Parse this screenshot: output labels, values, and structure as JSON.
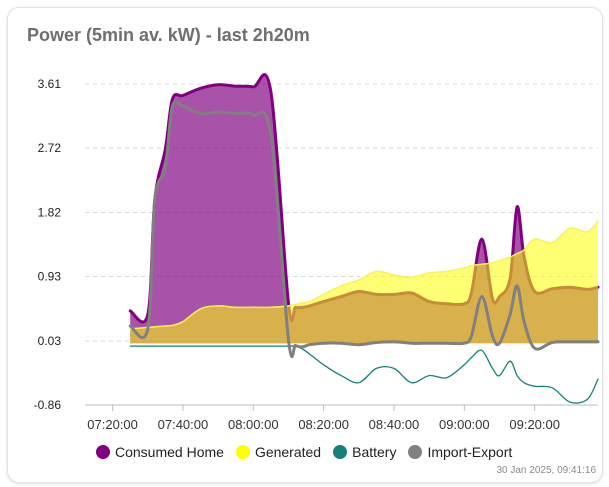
{
  "card": {
    "title": "Power (5min av. kW) - last 2h20m",
    "updated": "30 Jan 2025, 09:41:16"
  },
  "chart_data": {
    "type": "area",
    "title": "Power (5min av. kW) - last 2h20m",
    "xlabel": "",
    "ylabel": "",
    "ylim": [
      -0.86,
      3.61
    ],
    "y_ticks": [
      "3.61",
      "2.72",
      "1.82",
      "0.93",
      "0.03",
      "-0.86"
    ],
    "x_ticks": [
      "07:20:00",
      "07:40:00",
      "08:00:00",
      "08:20:00",
      "08:40:00",
      "09:00:00",
      "09:20:00"
    ],
    "grid": true,
    "legend_position": "bottom",
    "x": [
      "07:25",
      "07:30",
      "07:32",
      "07:35",
      "07:37",
      "07:40",
      "07:45",
      "07:50",
      "07:55",
      "08:00",
      "08:05",
      "08:10",
      "08:12",
      "08:14",
      "08:16",
      "08:20",
      "08:25",
      "08:30",
      "08:35",
      "08:40",
      "08:45",
      "08:50",
      "08:55",
      "09:00",
      "09:02",
      "09:05",
      "09:08",
      "09:10",
      "09:13",
      "09:15",
      "09:17",
      "09:20",
      "09:25",
      "09:30",
      "09:35",
      "09:38"
    ],
    "series": [
      {
        "name": "Consumed Home",
        "color": "#800080",
        "values": [
          0.45,
          0.4,
          2.0,
          2.7,
          3.4,
          3.45,
          3.55,
          3.6,
          3.58,
          3.57,
          3.5,
          0.55,
          0.5,
          0.5,
          0.52,
          0.58,
          0.65,
          0.72,
          0.68,
          0.68,
          0.7,
          0.58,
          0.55,
          0.55,
          0.7,
          1.45,
          0.62,
          0.65,
          0.9,
          1.9,
          1.2,
          0.72,
          0.76,
          0.78,
          0.75,
          0.78
        ]
      },
      {
        "name": "Generated",
        "color": "#ffff00",
        "values": [
          0.2,
          0.22,
          0.23,
          0.24,
          0.25,
          0.3,
          0.48,
          0.52,
          0.5,
          0.5,
          0.5,
          0.52,
          0.54,
          0.56,
          0.58,
          0.68,
          0.8,
          0.88,
          1.0,
          0.95,
          0.92,
          0.98,
          1.0,
          1.05,
          1.08,
          1.1,
          1.12,
          1.15,
          1.2,
          1.25,
          1.3,
          1.45,
          1.4,
          1.6,
          1.55,
          1.7
        ]
      },
      {
        "name": "Battery",
        "color": "#168178",
        "values": [
          -0.04,
          -0.04,
          -0.04,
          -0.04,
          -0.04,
          -0.04,
          -0.04,
          -0.04,
          -0.04,
          -0.04,
          -0.04,
          -0.04,
          -0.04,
          -0.08,
          -0.15,
          -0.3,
          -0.45,
          -0.55,
          -0.35,
          -0.35,
          -0.55,
          -0.45,
          -0.48,
          -0.3,
          -0.2,
          -0.1,
          -0.35,
          -0.45,
          -0.25,
          -0.45,
          -0.55,
          -0.6,
          -0.62,
          -0.82,
          -0.78,
          -0.5
        ]
      },
      {
        "name": "Import-Export",
        "color": "#808080",
        "values": [
          0.24,
          0.2,
          2.0,
          2.45,
          3.3,
          3.3,
          3.2,
          3.22,
          3.2,
          3.18,
          2.9,
          0.05,
          -0.03,
          -0.05,
          -0.02,
          0.0,
          0.0,
          -0.02,
          0.01,
          0.02,
          0.0,
          0.0,
          0.0,
          0.0,
          0.1,
          0.65,
          0.1,
          0.0,
          0.4,
          0.8,
          0.3,
          -0.07,
          0.01,
          0.02,
          0.02,
          0.02
        ]
      }
    ]
  }
}
